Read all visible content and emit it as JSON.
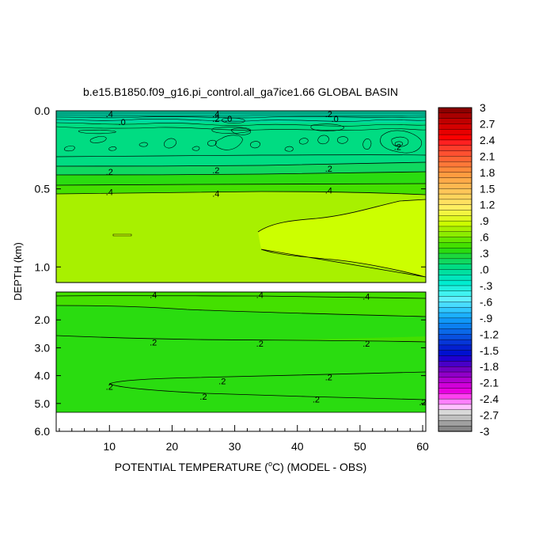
{
  "chart_data": {
    "type": "contour",
    "title": "b.e15.B1850.f09_g16.pi_control.all_ga7ice1.66 GLOBAL BASIN",
    "xlabel_prefix": "POTENTIAL TEMPERATURE (",
    "xlabel_unit_sup": "o",
    "xlabel_suffix": "C) (MODEL - OBS)",
    "ylabel": "DEPTH (km)",
    "xlim": [
      1.5,
      60.5
    ],
    "x_ticks": [
      10,
      20,
      30,
      40,
      50,
      60
    ],
    "x_tick_labels": [
      "10",
      "20",
      "30",
      "40",
      "50",
      "60"
    ],
    "upper_panel": {
      "ylim": [
        0.0,
        1.1
      ],
      "y_ticks": [
        0.0,
        0.5,
        1.0
      ],
      "y_tick_labels": [
        "0.0",
        "0.5",
        "1.0"
      ],
      "contour_labels": [
        {
          "text": ".4",
          "x": 10,
          "y": 0.02
        },
        {
          "text": ".4",
          "x": 27,
          "y": 0.02
        },
        {
          "text": ".2",
          "x": 45,
          "y": 0.02
        },
        {
          "text": ".0",
          "x": 12,
          "y": 0.07
        },
        {
          "text": ".2",
          "x": 27,
          "y": 0.05
        },
        {
          "text": ".0",
          "x": 29,
          "y": 0.05
        },
        {
          "text": ".0",
          "x": 46,
          "y": 0.05
        },
        {
          "text": ".2",
          "x": 56,
          "y": 0.23
        },
        {
          "text": ".2",
          "x": 10,
          "y": 0.39
        },
        {
          "text": ".2",
          "x": 27,
          "y": 0.38
        },
        {
          "text": ".2",
          "x": 45,
          "y": 0.37
        },
        {
          "text": ".4",
          "x": 10,
          "y": 0.52
        },
        {
          "text": ".4",
          "x": 27,
          "y": 0.53
        },
        {
          "text": ".4",
          "x": 45,
          "y": 0.51
        }
      ]
    },
    "lower_panel": {
      "ylim": [
        1.0,
        6.0
      ],
      "y_ticks": [
        2.0,
        3.0,
        4.0,
        5.0,
        6.0
      ],
      "y_tick_labels": [
        "2.0",
        "3.0",
        "4.0",
        "5.0",
        "6.0"
      ],
      "contour_labels": [
        {
          "text": ".4",
          "x": 17,
          "y": 1.1
        },
        {
          "text": ".4",
          "x": 34,
          "y": 1.1
        },
        {
          "text": ".4",
          "x": 51,
          "y": 1.15
        },
        {
          "text": ".2",
          "x": 17,
          "y": 2.8
        },
        {
          "text": ".2",
          "x": 34,
          "y": 2.85
        },
        {
          "text": ".2",
          "x": 51,
          "y": 2.85
        },
        {
          "text": ".2",
          "x": 10,
          "y": 4.4
        },
        {
          "text": ".2",
          "x": 28,
          "y": 4.2
        },
        {
          "text": ".2",
          "x": 45,
          "y": 4.05
        },
        {
          "text": ".2",
          "x": 25,
          "y": 4.75
        },
        {
          "text": ".2",
          "x": 43,
          "y": 4.85
        },
        {
          "text": ".2",
          "x": 60,
          "y": 4.95
        }
      ]
    },
    "colorbar": {
      "labels": [
        "3",
        "2.7",
        "2.4",
        "2.1",
        "1.8",
        "1.5",
        "1.2",
        ".9",
        ".6",
        ".3",
        ".0",
        "-.3",
        "-.6",
        "-.9",
        "-1.2",
        "-1.5",
        "-1.8",
        "-2.1",
        "-2.4",
        "-2.7",
        "-3"
      ],
      "colors_top_to_bottom": [
        "#8c0000",
        "#a80000",
        "#c00000",
        "#d40000",
        "#e80000",
        "#ff0000",
        "#ff2020",
        "#ff3c2a",
        "#ff5030",
        "#ff6433",
        "#ff7838",
        "#ff8a3a",
        "#ff9c40",
        "#ffaa48",
        "#ffb850",
        "#ffc658",
        "#ffd45c",
        "#ffe060",
        "#ffee60",
        "#f2f540",
        "#e0f820",
        "#ccff00",
        "#a8f000",
        "#8cec00",
        "#66e600",
        "#44e000",
        "#2adc10",
        "#1cd83c",
        "#10d860",
        "#00dc82",
        "#00e0a0",
        "#00e6bc",
        "#00ecd0",
        "#20f0e0",
        "#40f2f0",
        "#60f0ff",
        "#48dcff",
        "#30c8ff",
        "#1cb0ff",
        "#1098f8",
        "#0c80f0",
        "#0a68e8",
        "#0850e0",
        "#0636d8",
        "#0420d0",
        "#0010d0",
        "#2000d0",
        "#4800c8",
        "#7000c0",
        "#9000c8",
        "#b000d0",
        "#d000d8",
        "#e800e0",
        "#ff40f0",
        "#ff80ff",
        "#ffc0ff",
        "#d8d8d8",
        "#c0c0c0",
        "#a0a0a0",
        "#888888"
      ]
    }
  }
}
